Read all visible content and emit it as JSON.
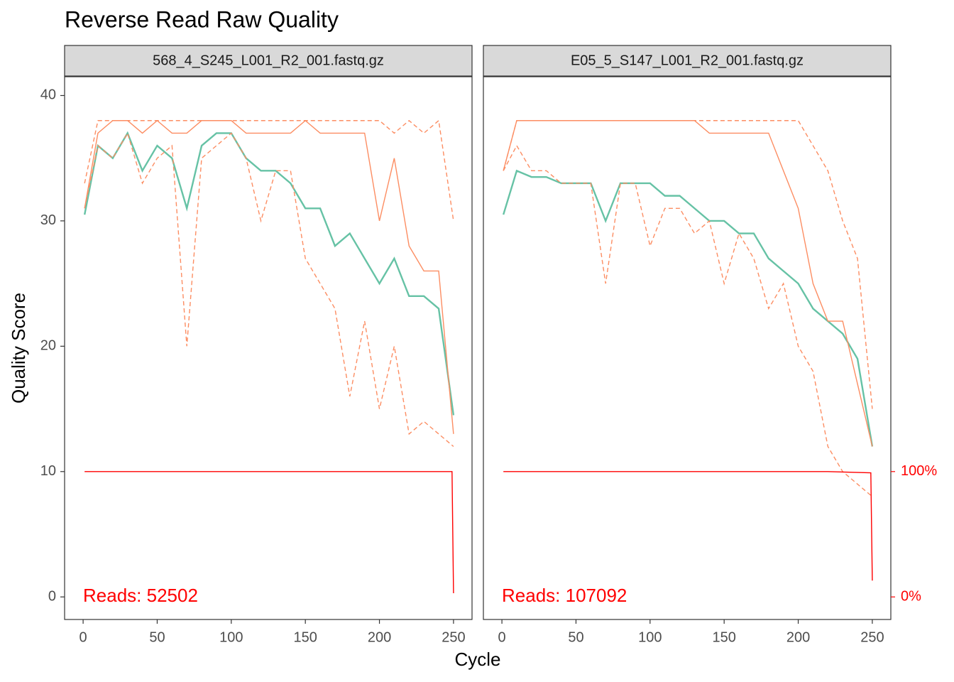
{
  "chart_data": {
    "type": "line",
    "title": "Reverse Read Raw Quality",
    "x_label": "Cycle",
    "y_label": "Quality Score",
    "xlim": [
      -12.5,
      262.5
    ],
    "ylim": [
      -1.8,
      41.5
    ],
    "xticks": [
      0,
      50,
      100,
      150,
      200,
      250
    ],
    "yticks": [
      0,
      10,
      20,
      30,
      40
    ],
    "y2lim": [
      -18,
      415
    ],
    "y2ticks": [
      {
        "value": 0,
        "label": "0%"
      },
      {
        "value": 100,
        "label": "100%"
      }
    ],
    "grid": false,
    "panels": [
      {
        "strip": "568_4_S245_L001_R2_001.fastq.gz",
        "annotation": "Reads:  52502",
        "x": [
          1,
          10,
          20,
          30,
          40,
          50,
          60,
          70,
          80,
          90,
          100,
          110,
          120,
          130,
          140,
          150,
          160,
          170,
          180,
          190,
          200,
          210,
          220,
          230,
          240,
          250
        ],
        "series": [
          {
            "color": "#66c2a5",
            "dash": false,
            "values": [
              30.5,
              36,
              35,
              37,
              34,
              36,
              35,
              31,
              36,
              37,
              37,
              35,
              34,
              34,
              33,
              31,
              31,
              28,
              29,
              27,
              25,
              27,
              24,
              24,
              23,
              14.5
            ]
          },
          {
            "color": "#fc8d62",
            "dash": true,
            "values": [
              31,
              36,
              35,
              37,
              33,
              35,
              36,
              20,
              35,
              36,
              37,
              35,
              30,
              34,
              34,
              27,
              25,
              23,
              16,
              22,
              15,
              20,
              13,
              14,
              13,
              12
            ]
          },
          {
            "color": "#fc8d62",
            "dash": false,
            "values": [
              31,
              37,
              38,
              38,
              37,
              38,
              37,
              37,
              38,
              38,
              38,
              37,
              37,
              37,
              37,
              38,
              37,
              37,
              37,
              37,
              30,
              35,
              28,
              26,
              26,
              13
            ]
          },
          {
            "color": "#fc8d62",
            "dash": true,
            "values": [
              33,
              38,
              38,
              38,
              38,
              38,
              38,
              38,
              38,
              38,
              38,
              38,
              38,
              38,
              38,
              38,
              38,
              38,
              38,
              38,
              38,
              37,
              38,
              37,
              38,
              30
            ]
          },
          {
            "color": "#ff0000",
            "dash": false,
            "axis": "y2",
            "x": [
              1,
              249,
              250
            ],
            "values": [
              100,
              100,
              3
            ]
          }
        ]
      },
      {
        "strip": "E05_5_S147_L001_R2_001.fastq.gz",
        "annotation": "Reads:  107092",
        "x": [
          1,
          10,
          20,
          30,
          40,
          50,
          60,
          70,
          80,
          90,
          100,
          110,
          120,
          130,
          140,
          150,
          160,
          170,
          180,
          190,
          200,
          210,
          220,
          230,
          240,
          250
        ],
        "series": [
          {
            "color": "#66c2a5",
            "dash": false,
            "values": [
              30.5,
              34,
              33.5,
              33.5,
              33,
              33,
              33,
              30,
              33,
              33,
              33,
              32,
              32,
              31,
              30,
              30,
              29,
              29,
              27,
              26,
              25,
              23,
              22,
              21,
              19,
              12
            ]
          },
          {
            "color": "#fc8d62",
            "dash": true,
            "values": [
              34,
              36,
              34,
              34,
              33,
              33,
              33,
              25,
              33,
              33,
              28,
              31,
              31,
              29,
              30,
              25,
              29,
              27,
              23,
              25,
              20,
              18,
              12,
              10,
              9,
              8
            ]
          },
          {
            "color": "#fc8d62",
            "dash": false,
            "values": [
              34,
              38,
              38,
              38,
              38,
              38,
              38,
              38,
              38,
              38,
              38,
              38,
              38,
              38,
              37,
              37,
              37,
              37,
              37,
              34,
              31,
              25,
              22,
              22,
              17,
              12
            ]
          },
          {
            "color": "#fc8d62",
            "dash": true,
            "values": [
              34,
              38,
              38,
              38,
              38,
              38,
              38,
              38,
              38,
              38,
              38,
              38,
              38,
              38,
              38,
              38,
              38,
              38,
              38,
              38,
              38,
              36,
              34,
              30,
              27,
              15
            ]
          },
          {
            "color": "#ff0000",
            "dash": false,
            "axis": "y2",
            "x": [
              1,
              220,
              249,
              250
            ],
            "values": [
              100,
              100,
              99,
              13
            ]
          }
        ]
      }
    ]
  }
}
